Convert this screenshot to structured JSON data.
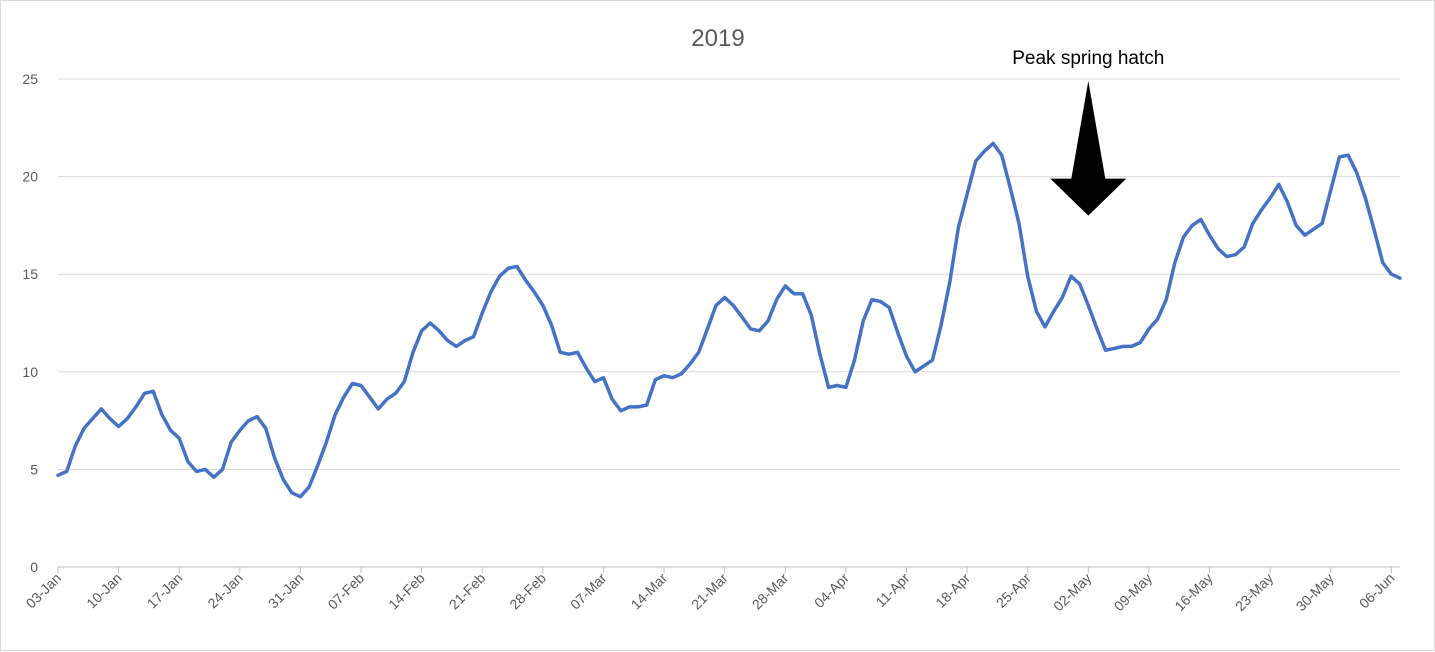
{
  "chart_data": {
    "type": "line",
    "title": "2019",
    "xlabel": "",
    "ylabel": "",
    "ylim": [
      0,
      25
    ],
    "yticks": [
      0,
      5,
      10,
      15,
      20,
      25
    ],
    "grid": true,
    "legend": "none",
    "x_range": [
      "2019-01-03",
      "2019-06-07"
    ],
    "x_ticks": [
      {
        "date": "2019-01-03",
        "label": "03-Jan"
      },
      {
        "date": "2019-01-10",
        "label": "10-Jan"
      },
      {
        "date": "2019-01-17",
        "label": "17-Jan"
      },
      {
        "date": "2019-01-24",
        "label": "24-Jan"
      },
      {
        "date": "2019-01-31",
        "label": "31-Jan"
      },
      {
        "date": "2019-02-07",
        "label": "07-Feb"
      },
      {
        "date": "2019-02-14",
        "label": "14-Feb"
      },
      {
        "date": "2019-02-21",
        "label": "21-Feb"
      },
      {
        "date": "2019-02-28",
        "label": "28-Feb"
      },
      {
        "date": "2019-03-07",
        "label": "07-Mar"
      },
      {
        "date": "2019-03-14",
        "label": "14-Mar"
      },
      {
        "date": "2019-03-21",
        "label": "21-Mar"
      },
      {
        "date": "2019-03-28",
        "label": "28-Mar"
      },
      {
        "date": "2019-04-04",
        "label": "04-Apr"
      },
      {
        "date": "2019-04-11",
        "label": "11-Apr"
      },
      {
        "date": "2019-04-18",
        "label": "18-Apr"
      },
      {
        "date": "2019-04-25",
        "label": "25-Apr"
      },
      {
        "date": "2019-05-02",
        "label": "02-May"
      },
      {
        "date": "2019-05-09",
        "label": "09-May"
      },
      {
        "date": "2019-05-16",
        "label": "16-May"
      },
      {
        "date": "2019-05-23",
        "label": "23-May"
      },
      {
        "date": "2019-05-30",
        "label": "30-May"
      },
      {
        "date": "2019-06-06",
        "label": "06-Jun"
      }
    ],
    "series": [
      {
        "color": "#4472c4",
        "start_date": "2019-01-03",
        "values": [
          4.7,
          4.9,
          6.2,
          7.1,
          7.6,
          8.1,
          7.6,
          7.2,
          7.6,
          8.2,
          8.9,
          9.0,
          7.8,
          7.0,
          6.6,
          5.4,
          4.9,
          5.0,
          4.6,
          5.0,
          6.4,
          7.0,
          7.5,
          7.7,
          7.1,
          5.6,
          4.5,
          3.8,
          3.6,
          4.1,
          5.2,
          6.4,
          7.8,
          8.7,
          9.4,
          9.3,
          8.7,
          8.1,
          8.6,
          8.9,
          9.5,
          11.0,
          12.1,
          12.5,
          12.1,
          11.6,
          11.3,
          11.6,
          11.8,
          13.0,
          14.1,
          14.9,
          15.3,
          15.4,
          14.7,
          14.1,
          13.4,
          12.4,
          11.0,
          10.9,
          11.0,
          10.2,
          9.5,
          9.7,
          8.6,
          8.0,
          8.2,
          8.2,
          8.3,
          9.6,
          9.8,
          9.7,
          9.9,
          10.4,
          11.0,
          12.2,
          13.4,
          13.8,
          13.4,
          12.8,
          12.2,
          12.1,
          12.6,
          13.7,
          14.4,
          14.0,
          14.0,
          12.9,
          10.9,
          9.2,
          9.3,
          9.2,
          10.6,
          12.6,
          13.7,
          13.6,
          13.3,
          12.0,
          10.8,
          10.0,
          10.3,
          10.6,
          12.4,
          14.6,
          17.4,
          19.1,
          20.8,
          21.3,
          21.7,
          21.1,
          19.4,
          17.6,
          14.9,
          13.1,
          12.3,
          13.1,
          13.8,
          14.9,
          14.5,
          13.4,
          12.2,
          11.1,
          11.2,
          11.3,
          11.3,
          11.5,
          12.2,
          12.7,
          13.7,
          15.6,
          16.9,
          17.5,
          17.8,
          17.0,
          16.3,
          15.9,
          16.0,
          16.4,
          17.6,
          18.3,
          18.9,
          19.6,
          18.7,
          17.5,
          17.0,
          17.3,
          17.6,
          19.3,
          21.0,
          21.1,
          20.2,
          18.9,
          17.3,
          15.6,
          15.0,
          14.8
        ]
      }
    ],
    "annotations": [
      {
        "text": "Peak spring hatch",
        "arrow_date": "2019-05-02",
        "arrow_tip_value": 18.0
      }
    ]
  }
}
